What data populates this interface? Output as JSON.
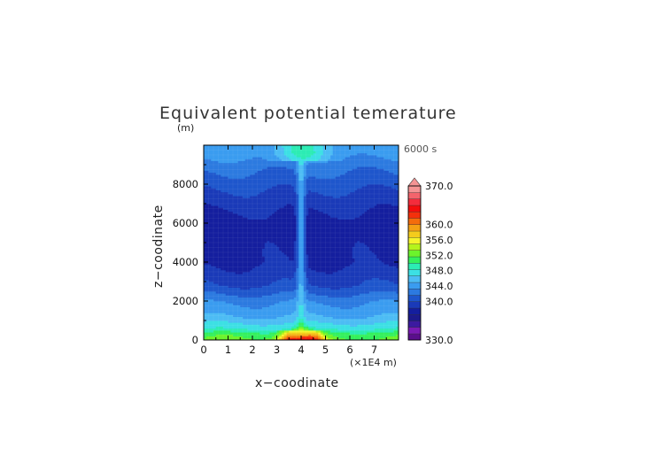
{
  "chart_data": {
    "type": "heatmap",
    "title": "Equivalent potential temerature",
    "xlabel": "x−coodinate",
    "ylabel": "z−coodinate",
    "x_unit": "(×1E4 m)",
    "y_unit": "(m)",
    "time_label": "6000 s",
    "xlim": [
      0,
      8
    ],
    "ylim": [
      0,
      10000
    ],
    "x_ticks": [
      "0",
      "1",
      "2",
      "3",
      "4",
      "5",
      "6",
      "7"
    ],
    "y_ticks": [
      "0",
      "2000",
      "4000",
      "6000",
      "8000"
    ],
    "colorbar": {
      "min": 330,
      "max": 370,
      "tick_labels": [
        "330.0",
        "340.0",
        "344.0",
        "348.0",
        "352.0",
        "356.0",
        "360.0",
        "370.0"
      ],
      "colors": [
        "#5a0e8c",
        "#7a1ab4",
        "#3c1aa0",
        "#1c1a8c",
        "#141e9e",
        "#1a3ab8",
        "#1e56cc",
        "#2c7ae0",
        "#3a9cf0",
        "#4cbcf4",
        "#3ce0e4",
        "#2cecb4",
        "#34f05c",
        "#6cf42c",
        "#b4f41c",
        "#f4f42c",
        "#f4cc1c",
        "#f4a014",
        "#f46c0c",
        "#f4300c",
        "#f40c0c",
        "#f42c3c",
        "#f4646c",
        "#f49494"
      ]
    },
    "field_summary": [
      {
        "z": 0,
        "value_env": 352,
        "value_plume": 364
      },
      {
        "z": 300,
        "value_env": 351,
        "value_plume": 358
      },
      {
        "z": 600,
        "value_env": 348,
        "value_plume": 352
      },
      {
        "z": 1200,
        "value_env": 345,
        "value_plume": 347
      },
      {
        "z": 2000,
        "value_env": 343,
        "value_plume": 346
      },
      {
        "z": 2800,
        "value_env": 340,
        "value_plume": 345
      },
      {
        "z": 4000,
        "value_env": 338,
        "value_plume": 345
      },
      {
        "z": 6000,
        "value_env": 337.5,
        "value_plume": 345
      },
      {
        "z": 7400,
        "value_env": 339.5,
        "value_plume": 345
      },
      {
        "z": 8800,
        "value_env": 342,
        "value_plume": 346
      },
      {
        "z": 9600,
        "value_env": 344,
        "value_plume": 349
      }
    ]
  }
}
